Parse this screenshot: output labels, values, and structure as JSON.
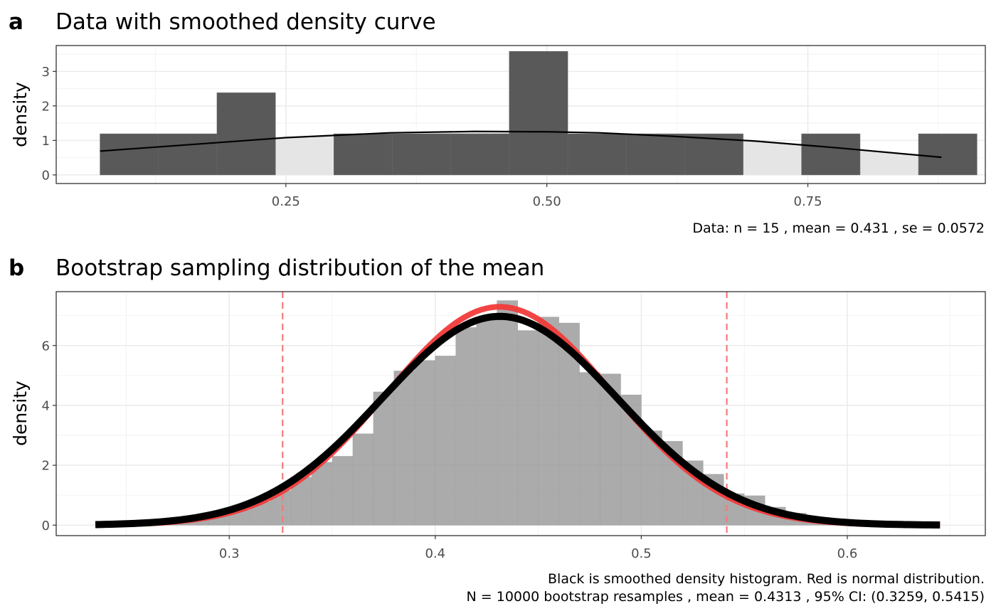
{
  "chart_data": [
    {
      "tag": "a",
      "type": "bar",
      "title": "Data with smoothed density curve",
      "xlabel": "",
      "ylabel": "density",
      "xlim": [
        0.03,
        0.92
      ],
      "ylim": [
        -0.25,
        3.75
      ],
      "xticks": [
        0.25,
        0.5,
        0.75
      ],
      "xtick_labels": [
        "0.25",
        "0.50",
        "0.75"
      ],
      "yticks": [
        0,
        1,
        2,
        3
      ],
      "ytick_labels": [
        "0",
        "1",
        "2",
        "3"
      ],
      "grid": true,
      "histogram": {
        "bin_width": 0.0559,
        "bins": [
          {
            "x0": 0.072,
            "x1": 0.128,
            "density": 1.19
          },
          {
            "x0": 0.128,
            "x1": 0.184,
            "density": 1.19
          },
          {
            "x0": 0.184,
            "x1": 0.24,
            "density": 2.38
          },
          {
            "x0": 0.24,
            "x1": 0.296,
            "density": 0
          },
          {
            "x0": 0.296,
            "x1": 0.352,
            "density": 1.19
          },
          {
            "x0": 0.352,
            "x1": 0.408,
            "density": 1.19
          },
          {
            "x0": 0.408,
            "x1": 0.464,
            "density": 1.19
          },
          {
            "x0": 0.464,
            "x1": 0.52,
            "density": 3.58
          },
          {
            "x0": 0.52,
            "x1": 0.576,
            "density": 1.19
          },
          {
            "x0": 0.576,
            "x1": 0.632,
            "density": 1.19
          },
          {
            "x0": 0.632,
            "x1": 0.688,
            "density": 1.19
          },
          {
            "x0": 0.688,
            "x1": 0.744,
            "density": 0
          },
          {
            "x0": 0.744,
            "x1": 0.8,
            "density": 1.19
          },
          {
            "x0": 0.8,
            "x1": 0.856,
            "density": 0
          },
          {
            "x0": 0.856,
            "x1": 0.912,
            "density": 1.19
          }
        ]
      },
      "series": [
        {
          "type": "density-area",
          "x": [
            0.072,
            0.15,
            0.25,
            0.35,
            0.431,
            0.5,
            0.55,
            0.62,
            0.7,
            0.78,
            0.878
          ],
          "y": [
            0.69,
            0.86,
            1.08,
            1.22,
            1.26,
            1.25,
            1.22,
            1.12,
            0.98,
            0.78,
            0.51
          ]
        }
      ],
      "caption": [
        "Data: n = 15 ,  mean = 0.431 ,  se = 0.0572"
      ],
      "colors": {
        "bars": "#595959",
        "area": "#e5e5e5",
        "curve": "#000000"
      }
    },
    {
      "tag": "b",
      "type": "bar",
      "title": "Bootstrap sampling distribution of the mean",
      "xlabel": "",
      "ylabel": "density",
      "xlim": [
        0.216,
        0.667
      ],
      "ylim": [
        -0.35,
        7.8
      ],
      "xticks": [
        0.3,
        0.4,
        0.5,
        0.6
      ],
      "xtick_labels": [
        "0.3",
        "0.4",
        "0.5",
        "0.6"
      ],
      "yticks": [
        0,
        2,
        4,
        6
      ],
      "ytick_labels": [
        "0",
        "2",
        "4",
        "6"
      ],
      "grid": true,
      "histogram": {
        "bin_width": 0.01,
        "bins": [
          {
            "x0": 0.25,
            "x1": 0.26,
            "density": 0.02
          },
          {
            "x0": 0.26,
            "x1": 0.27,
            "density": 0.04
          },
          {
            "x0": 0.27,
            "x1": 0.28,
            "density": 0.1
          },
          {
            "x0": 0.28,
            "x1": 0.29,
            "density": 0.18
          },
          {
            "x0": 0.29,
            "x1": 0.3,
            "density": 0.3
          },
          {
            "x0": 0.3,
            "x1": 0.31,
            "density": 0.5
          },
          {
            "x0": 0.31,
            "x1": 0.32,
            "density": 0.78
          },
          {
            "x0": 0.32,
            "x1": 0.33,
            "density": 1.15
          },
          {
            "x0": 0.33,
            "x1": 0.34,
            "density": 1.6
          },
          {
            "x0": 0.34,
            "x1": 0.35,
            "density": 2.1
          },
          {
            "x0": 0.35,
            "x1": 0.36,
            "density": 2.3
          },
          {
            "x0": 0.36,
            "x1": 0.37,
            "density": 3.05
          },
          {
            "x0": 0.37,
            "x1": 0.38,
            "density": 4.45
          },
          {
            "x0": 0.38,
            "x1": 0.39,
            "density": 5.15
          },
          {
            "x0": 0.39,
            "x1": 0.4,
            "density": 5.5
          },
          {
            "x0": 0.4,
            "x1": 0.41,
            "density": 5.65
          },
          {
            "x0": 0.41,
            "x1": 0.42,
            "density": 6.6
          },
          {
            "x0": 0.42,
            "x1": 0.43,
            "density": 6.9
          },
          {
            "x0": 0.43,
            "x1": 0.44,
            "density": 7.5
          },
          {
            "x0": 0.44,
            "x1": 0.45,
            "density": 6.5
          },
          {
            "x0": 0.45,
            "x1": 0.46,
            "density": 6.95
          },
          {
            "x0": 0.46,
            "x1": 0.47,
            "density": 6.75
          },
          {
            "x0": 0.47,
            "x1": 0.48,
            "density": 5.1
          },
          {
            "x0": 0.48,
            "x1": 0.49,
            "density": 5.05
          },
          {
            "x0": 0.49,
            "x1": 0.5,
            "density": 4.35
          },
          {
            "x0": 0.5,
            "x1": 0.51,
            "density": 3.15
          },
          {
            "x0": 0.51,
            "x1": 0.52,
            "density": 2.8
          },
          {
            "x0": 0.52,
            "x1": 0.53,
            "density": 2.15
          },
          {
            "x0": 0.53,
            "x1": 0.54,
            "density": 1.7
          },
          {
            "x0": 0.54,
            "x1": 0.55,
            "density": 1.05
          },
          {
            "x0": 0.55,
            "x1": 0.56,
            "density": 0.98
          },
          {
            "x0": 0.56,
            "x1": 0.57,
            "density": 0.6
          },
          {
            "x0": 0.57,
            "x1": 0.58,
            "density": 0.4
          },
          {
            "x0": 0.58,
            "x1": 0.59,
            "density": 0.25
          },
          {
            "x0": 0.59,
            "x1": 0.6,
            "density": 0.15
          },
          {
            "x0": 0.6,
            "x1": 0.61,
            "density": 0.09
          },
          {
            "x0": 0.61,
            "x1": 0.62,
            "density": 0.05
          },
          {
            "x0": 0.62,
            "x1": 0.63,
            "density": 0.03
          },
          {
            "x0": 0.63,
            "x1": 0.64,
            "density": 0.02
          }
        ]
      },
      "series": [
        {
          "type": "normal-curve",
          "mean": 0.4313,
          "sd": 0.0547,
          "range": [
            0.24,
            0.645
          ],
          "color": "#f23a3a"
        },
        {
          "type": "density-curve",
          "mean": 0.4313,
          "sd": 0.0572,
          "range": [
            0.235,
            0.645
          ],
          "color": "#000000"
        }
      ],
      "vlines": [
        0.3259,
        0.5415
      ],
      "caption": [
        "Black is smoothed density histogram.  Red is normal distribution.",
        "N = 10000 bootstrap resamples ,  mean = 0.4313 ,  95% CI: (0.3259, 0.5415)"
      ],
      "colors": {
        "bars": "#999999",
        "vline": "#f47a7a"
      }
    }
  ]
}
